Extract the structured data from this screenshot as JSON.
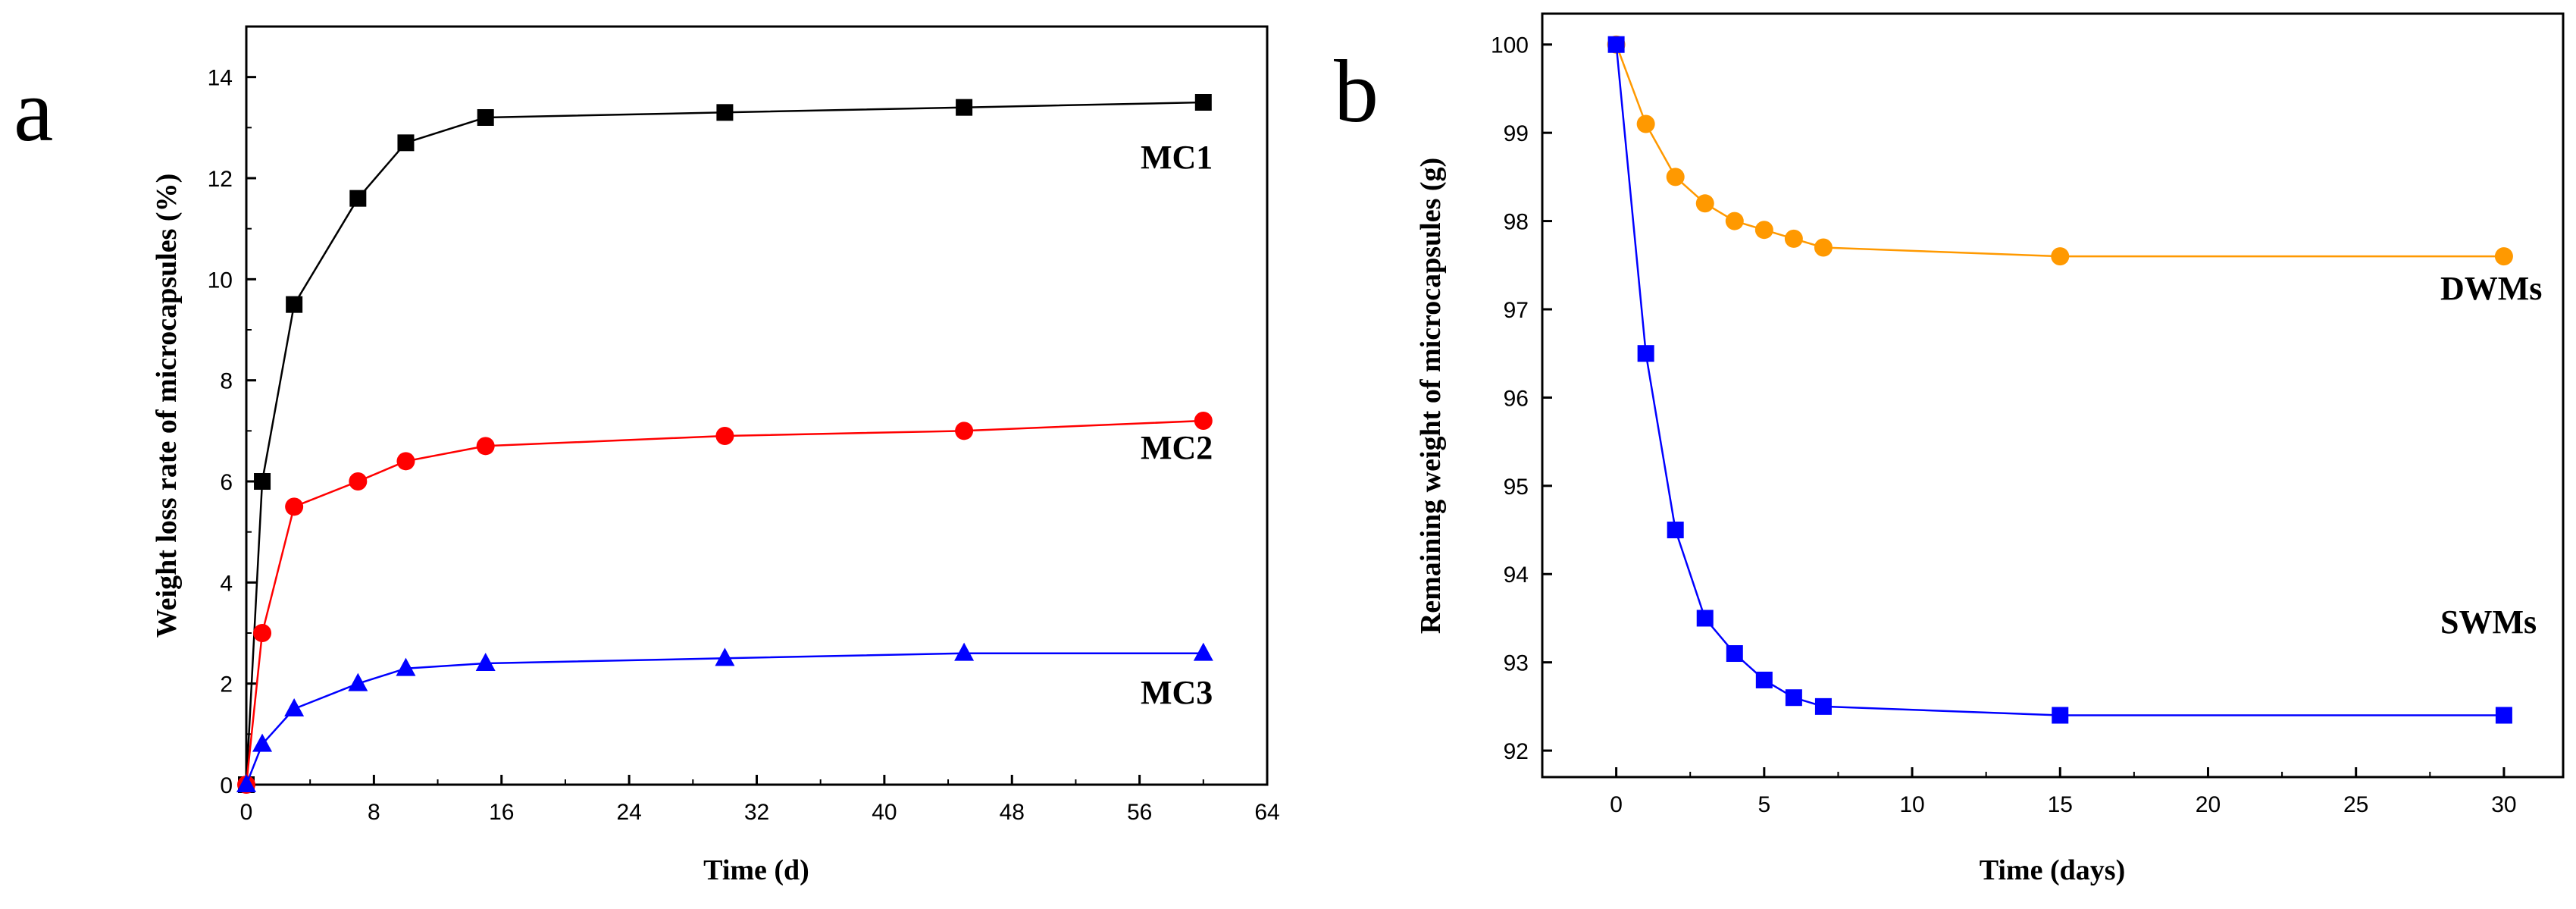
{
  "chart_data": [
    {
      "panel_label": "a",
      "type": "line",
      "title": "",
      "xlabel": "Time (d)",
      "ylabel": "Weight loss rate of microcapsules (%)",
      "xlim": [
        0,
        64
      ],
      "ylim": [
        0,
        15
      ],
      "xticks": [
        0,
        8,
        16,
        24,
        32,
        40,
        48,
        56,
        64
      ],
      "yticks": [
        0,
        2,
        4,
        6,
        8,
        10,
        12,
        14
      ],
      "grid": false,
      "series": [
        {
          "name": "MC1",
          "color": "#000000",
          "marker": "square",
          "x": [
            0,
            1,
            3,
            7,
            10,
            15,
            30,
            45,
            60
          ],
          "y": [
            0,
            6.0,
            9.5,
            11.6,
            12.7,
            13.2,
            13.3,
            13.4,
            13.5
          ]
        },
        {
          "name": "MC2",
          "color": "#ff0000",
          "marker": "circle",
          "x": [
            0,
            1,
            3,
            7,
            10,
            15,
            30,
            45,
            60
          ],
          "y": [
            0,
            3.0,
            5.5,
            6.0,
            6.4,
            6.7,
            6.9,
            7.0,
            7.2
          ]
        },
        {
          "name": "MC3",
          "color": "#0000ff",
          "marker": "triangle",
          "x": [
            0,
            1,
            3,
            7,
            10,
            15,
            30,
            45,
            60
          ],
          "y": [
            0,
            0.8,
            1.5,
            2.0,
            2.3,
            2.4,
            2.5,
            2.6,
            2.6
          ]
        }
      ]
    },
    {
      "panel_label": "b",
      "type": "line",
      "title": "",
      "xlabel": "Time (days)",
      "ylabel": "Remaining weight of microcapsules (g)",
      "xlim": [
        -2.5,
        32
      ],
      "ylim": [
        91.7,
        100.35
      ],
      "xticks": [
        0,
        5,
        10,
        15,
        20,
        25,
        30
      ],
      "yticks": [
        92,
        93,
        94,
        95,
        96,
        97,
        98,
        99,
        100
      ],
      "grid": false,
      "series": [
        {
          "name": "DWMs",
          "color": "#ff9900",
          "marker": "circle",
          "x": [
            0,
            1,
            2,
            3,
            4,
            5,
            6,
            7,
            15,
            30
          ],
          "y": [
            100.0,
            99.1,
            98.5,
            98.2,
            98.0,
            97.9,
            97.8,
            97.7,
            97.6,
            97.6
          ]
        },
        {
          "name": "SWMs",
          "color": "#0000ff",
          "marker": "square",
          "x": [
            0,
            1,
            2,
            3,
            4,
            5,
            6,
            7,
            15,
            30
          ],
          "y": [
            100.0,
            96.5,
            94.5,
            93.5,
            93.1,
            92.8,
            92.6,
            92.5,
            92.4,
            92.4
          ]
        }
      ]
    }
  ]
}
